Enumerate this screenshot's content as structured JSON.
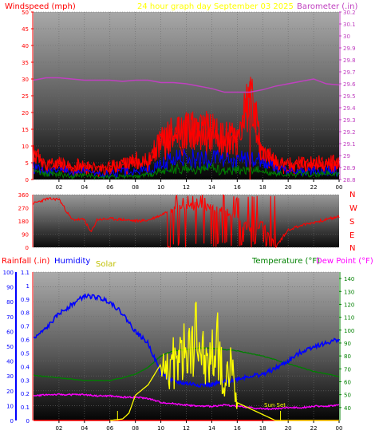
{
  "header": {
    "wind_label": "Windspeed (mph)",
    "date_label": "24 hour graph day   September 03 2025",
    "baro_label": "Barometer (.in)"
  },
  "middle": {
    "dir_labels": [
      "N",
      "W",
      "S",
      "E",
      "N"
    ]
  },
  "bottom_header": {
    "rain_label": "Rainfall (.in)",
    "humidity_label": "Humidity",
    "solar_label": "Solar",
    "temp_label": "Temperature (°F)",
    "dew_label": "Dew Point (°F)"
  },
  "annotation": {
    "sunset": "Sun Set"
  },
  "colors": {
    "wind_gust": "#ff0000",
    "wind_avg_blue": "#0000ff",
    "wind_avg_green": "#008000",
    "barometer": "#c040c0",
    "direction": "#ff0000",
    "humidity": "#0000ff",
    "solar": "#ffff00",
    "temperature": "#008000",
    "dewpoint": "#ff00ff",
    "rain": "#ff0000",
    "date_text": "#ffff00",
    "label_red": "#ff0000",
    "label_magenta": "#ff00ff",
    "label_blue": "#0000ff",
    "label_green": "#008000",
    "solar_text": "#c0c000"
  },
  "chart_data": [
    {
      "type": "line",
      "id": "wind_baro",
      "x_ticks": [
        "02",
        "04",
        "06",
        "08",
        "10",
        "12",
        "14",
        "16",
        "18",
        "20",
        "22",
        "00"
      ],
      "xlim": [
        0,
        24
      ],
      "ylim_left": [
        0,
        50
      ],
      "yticks_left": [
        0,
        5,
        10,
        15,
        20,
        25,
        30,
        35,
        40,
        45,
        50
      ],
      "ylim_right": [
        28.8,
        30.2
      ],
      "yticks_right": [
        "28.8",
        "28.9",
        "29",
        "29.1",
        "29.2",
        "29.3",
        "29.4",
        "29.5",
        "29.6",
        "29.7",
        "29.8",
        "29.9",
        "30",
        "30.1",
        "30.2"
      ],
      "series": [
        {
          "role": "barometer",
          "axis": "right",
          "x": [
            0,
            1,
            2,
            3,
            4,
            5,
            6,
            7,
            8,
            9,
            10,
            11,
            12,
            13,
            14,
            15,
            16,
            17,
            18,
            19,
            20,
            21,
            22,
            23,
            24
          ],
          "values": [
            29.63,
            29.65,
            29.65,
            29.64,
            29.63,
            29.63,
            29.63,
            29.62,
            29.63,
            29.63,
            29.61,
            29.61,
            29.6,
            29.58,
            29.56,
            29.53,
            29.53,
            29.53,
            29.55,
            29.58,
            29.6,
            29.62,
            29.64,
            29.6,
            29.59
          ]
        },
        {
          "role": "gust",
          "axis": "left",
          "x": [
            0,
            1,
            2,
            3,
            4,
            5,
            6,
            7,
            8,
            9,
            10,
            11,
            12,
            13,
            14,
            15,
            16,
            16.5,
            17,
            18,
            19,
            20,
            21,
            22,
            23,
            24
          ],
          "values": [
            10,
            5,
            6,
            4,
            5,
            4,
            4,
            6,
            6,
            7,
            14,
            16,
            18,
            17,
            18,
            15,
            15,
            22,
            29,
            10,
            6,
            5,
            6,
            5,
            6,
            5
          ]
        },
        {
          "role": "avg_blue",
          "axis": "left",
          "x": [
            0,
            1,
            2,
            3,
            4,
            5,
            6,
            7,
            8,
            9,
            10,
            11,
            12,
            13,
            14,
            15,
            16,
            17,
            18,
            19,
            20,
            21,
            22,
            23,
            24
          ],
          "values": [
            5,
            3,
            4,
            2,
            3,
            2,
            2,
            3,
            3,
            3,
            6,
            8,
            8,
            7,
            8,
            7,
            7,
            8,
            6,
            4,
            3,
            3,
            3,
            3,
            3
          ]
        },
        {
          "role": "avg_green",
          "axis": "left",
          "x": [
            0,
            1,
            2,
            3,
            4,
            5,
            6,
            7,
            8,
            9,
            10,
            11,
            12,
            13,
            14,
            15,
            16,
            17,
            18,
            19,
            20,
            21,
            22,
            23,
            24
          ],
          "values": [
            3,
            2,
            2,
            1,
            2,
            1,
            1,
            1,
            1,
            2,
            3,
            4,
            4,
            4,
            4,
            3,
            4,
            4,
            3,
            2,
            2,
            2,
            2,
            2,
            2
          ]
        }
      ]
    },
    {
      "type": "line",
      "id": "direction",
      "xlim": [
        0,
        24
      ],
      "ylim": [
        0,
        360
      ],
      "yticks": [
        0,
        90,
        180,
        270,
        360
      ],
      "series": [
        {
          "role": "direction",
          "x": [
            0,
            1,
            2,
            3,
            4,
            4.5,
            5,
            6,
            7,
            8,
            9,
            10,
            11,
            12,
            13,
            14,
            15,
            16,
            17,
            18,
            18.5,
            19,
            20,
            21,
            22,
            23,
            24
          ],
          "values": [
            300,
            330,
            330,
            190,
            190,
            100,
            190,
            195,
            190,
            180,
            185,
            220,
            270,
            280,
            285,
            270,
            250,
            200,
            120,
            170,
            100,
            0,
            120,
            150,
            170,
            190,
            210
          ]
        }
      ]
    },
    {
      "type": "line",
      "id": "temp_hum_solar_rain",
      "x_ticks": [
        "02",
        "04",
        "06",
        "08",
        "10",
        "12",
        "14",
        "16",
        "18",
        "20",
        "22",
        "00"
      ],
      "xlim": [
        0,
        24
      ],
      "ylim_left_humidity": [
        0,
        100
      ],
      "yticks_left_humidity": [
        0,
        10,
        20,
        30,
        40,
        50,
        60,
        70,
        80,
        90,
        100
      ],
      "ylim_left_rain": [
        0,
        1.1
      ],
      "yticks_left_rain": [
        "0",
        "0.1",
        "0.2",
        "0.3",
        "0.4",
        "0.5",
        "0.6",
        "0.7",
        "0.8",
        "0.9",
        "1",
        "1.1"
      ],
      "ylim_right_temp": [
        30,
        145
      ],
      "yticks_right_temp": [
        40,
        50,
        60,
        70,
        80,
        90,
        100,
        110,
        120,
        130,
        140
      ],
      "series": [
        {
          "role": "humidity",
          "axis": "humidity",
          "x": [
            0,
            1,
            2,
            3,
            4,
            5,
            6,
            7,
            8,
            9,
            10,
            11,
            12,
            13,
            14,
            15,
            16,
            17,
            18,
            19,
            20,
            21,
            22,
            23,
            24
          ],
          "values": [
            55,
            62,
            72,
            78,
            84,
            83,
            80,
            72,
            60,
            52,
            32,
            26,
            25,
            24,
            24,
            26,
            28,
            30,
            31,
            35,
            40,
            46,
            50,
            52,
            55
          ]
        },
        {
          "role": "temperature",
          "axis": "temp",
          "x": [
            0,
            1,
            2,
            3,
            4,
            5,
            6,
            7,
            8,
            9,
            10,
            11,
            12,
            13,
            14,
            15,
            16,
            17,
            18,
            19,
            20,
            21,
            22,
            23,
            24
          ],
          "values": [
            65,
            64,
            63,
            62,
            61,
            61,
            61,
            63,
            66,
            71,
            80,
            84,
            85,
            86,
            86,
            85,
            84,
            82,
            80,
            77,
            74,
            71,
            68,
            66,
            64
          ]
        },
        {
          "role": "dewpoint",
          "axis": "temp",
          "x": [
            0,
            1,
            2,
            3,
            4,
            5,
            6,
            7,
            8,
            9,
            10,
            11,
            12,
            13,
            14,
            15,
            16,
            17,
            18,
            19,
            20,
            21,
            22,
            23,
            24
          ],
          "values": [
            49,
            50,
            50,
            50,
            50,
            49,
            49,
            48,
            48,
            47,
            44,
            43,
            42,
            41,
            41,
            42,
            41,
            40,
            39,
            39,
            40,
            40,
            41,
            41,
            42
          ]
        },
        {
          "role": "solar",
          "axis": "humidity",
          "x": [
            6,
            7,
            7.5,
            8,
            9,
            10,
            11,
            12,
            12.5,
            13,
            13.5,
            14,
            14.5,
            15,
            15.5,
            16,
            17,
            18,
            18.5,
            19,
            24
          ],
          "values": [
            0,
            1,
            5,
            17,
            24,
            38,
            48,
            56,
            62,
            71,
            45,
            55,
            62,
            25,
            50,
            12,
            8,
            4,
            2,
            0,
            0
          ]
        },
        {
          "role": "rain",
          "axis": "rain",
          "x": [
            0,
            24
          ],
          "values": [
            0,
            0
          ]
        }
      ]
    }
  ]
}
